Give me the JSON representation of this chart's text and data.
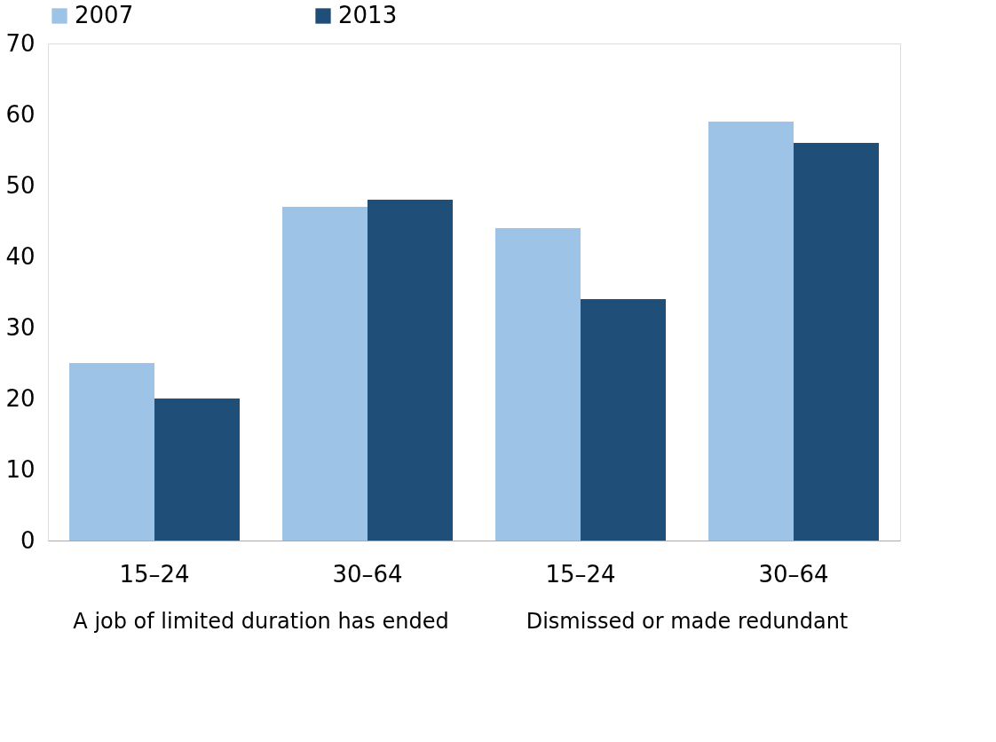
{
  "chart_data": {
    "type": "bar",
    "categories": [
      "15–24",
      "30–64",
      "15–24",
      "30–64"
    ],
    "series": [
      {
        "name": "2007",
        "color": "#9dc3e6",
        "values": [
          25,
          47,
          44,
          59
        ]
      },
      {
        "name": "2013",
        "color": "#1f4e79",
        "values": [
          20,
          48,
          34,
          56
        ]
      }
    ],
    "annotations": [
      "A job of limited duration has ended",
      "Dismissed or made redundant"
    ],
    "ylim": [
      0,
      70
    ],
    "yticks": [
      0,
      10,
      20,
      30,
      40,
      50,
      60,
      70
    ],
    "grid": false,
    "legend": "top"
  }
}
